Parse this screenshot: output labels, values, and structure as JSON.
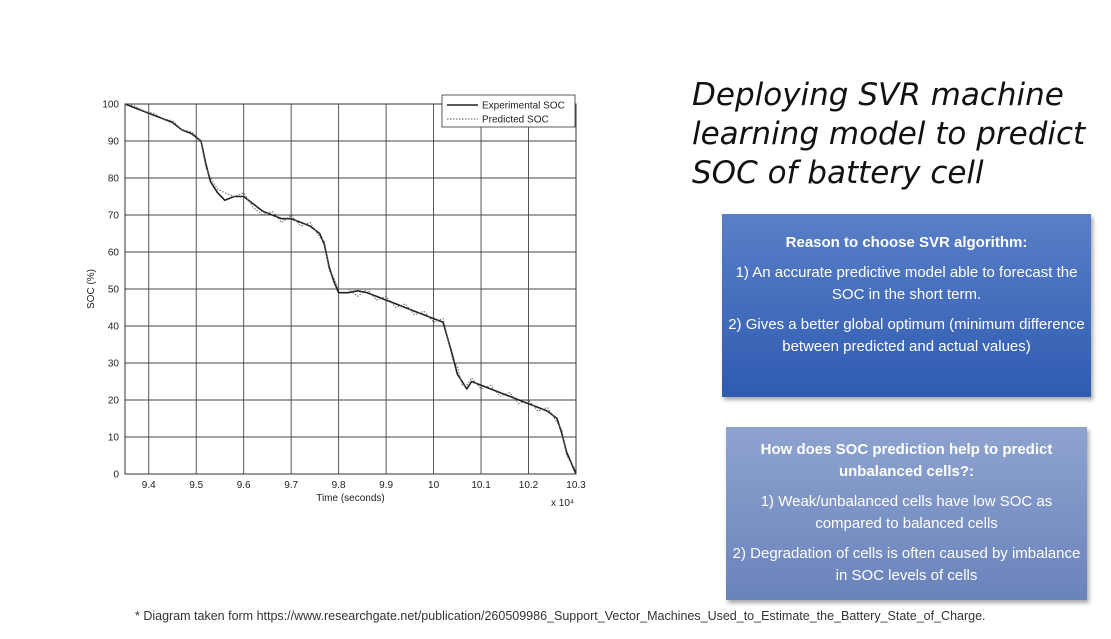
{
  "slide": {
    "title": "Deploying SVR machine learning model to predict SOC of battery cell",
    "box1": {
      "heading": "Reason to choose SVR algorithm:",
      "items": [
        "1)   An accurate predictive model able to forecast the SOC in the short term.",
        "2)  Gives a better global optimum (minimum difference between predicted and actual values)"
      ]
    },
    "box2": {
      "heading": "How does SOC prediction help to predict unbalanced cells?:",
      "items": [
        "1) Weak/unbalanced cells have low SOC as compared to balanced cells",
        "2) Degradation of cells is often caused by imbalance in SOC levels of cells"
      ]
    },
    "footnote": "* Diagram taken form https://www.researchgate.net/publication/260509986_Support_Vector_Machines_Used_to_Estimate_the_Battery_State_of_Charge."
  },
  "chart_data": {
    "type": "line",
    "xlabel": "Time (seconds)",
    "ylabel": "SOC (%)",
    "x_multiplier": "x 10⁴",
    "xlim": [
      9.35,
      10.3
    ],
    "ylim": [
      0,
      100
    ],
    "xticks": [
      "9.4",
      "9.5",
      "9.6",
      "9.7",
      "9.8",
      "9.9",
      "10",
      "10.1",
      "10.2",
      "10.3"
    ],
    "yticks": [
      "0",
      "10",
      "20",
      "30",
      "40",
      "50",
      "60",
      "70",
      "80",
      "90",
      "100"
    ],
    "grid": true,
    "legend_position": "top-right",
    "series": [
      {
        "name": "Experimental SOC",
        "style": "solid",
        "x": [
          9.35,
          9.37,
          9.39,
          9.41,
          9.43,
          9.45,
          9.47,
          9.49,
          9.51,
          9.52,
          9.53,
          9.545,
          9.56,
          9.58,
          9.6,
          9.62,
          9.64,
          9.66,
          9.68,
          9.7,
          9.72,
          9.74,
          9.76,
          9.77,
          9.78,
          9.79,
          9.8,
          9.82,
          9.84,
          9.86,
          9.88,
          9.9,
          9.92,
          9.94,
          9.96,
          9.98,
          10.0,
          10.02,
          10.04,
          10.05,
          10.06,
          10.07,
          10.08,
          10.1,
          10.12,
          10.14,
          10.16,
          10.18,
          10.2,
          10.22,
          10.24,
          10.26,
          10.27,
          10.28,
          10.3
        ],
        "y": [
          100,
          99,
          98,
          97,
          96,
          95,
          93,
          92,
          90,
          84,
          79,
          76,
          74,
          75,
          75,
          73,
          71,
          70,
          69,
          69,
          68,
          67,
          65,
          62,
          56,
          52,
          49,
          49,
          49.5,
          49,
          48,
          47,
          46,
          45,
          44,
          43,
          42,
          41,
          32,
          27,
          25,
          23,
          25,
          24,
          23,
          22,
          21,
          20,
          19,
          18,
          17,
          15,
          11,
          6,
          0
        ]
      },
      {
        "name": "Predicted SOC",
        "style": "dotted",
        "x": [
          9.35,
          9.37,
          9.39,
          9.41,
          9.43,
          9.45,
          9.47,
          9.49,
          9.51,
          9.52,
          9.53,
          9.545,
          9.56,
          9.58,
          9.6,
          9.62,
          9.64,
          9.66,
          9.68,
          9.7,
          9.72,
          9.74,
          9.76,
          9.77,
          9.78,
          9.79,
          9.8,
          9.82,
          9.84,
          9.86,
          9.88,
          9.9,
          9.92,
          9.94,
          9.96,
          9.98,
          10.0,
          10.02,
          10.04,
          10.05,
          10.06,
          10.07,
          10.08,
          10.1,
          10.12,
          10.14,
          10.16,
          10.18,
          10.2,
          10.22,
          10.24,
          10.26,
          10.27,
          10.28,
          10.3
        ],
        "y": [
          100,
          99.5,
          98,
          97.5,
          96,
          95.5,
          93,
          92.5,
          90,
          83,
          80,
          77,
          76,
          75,
          76,
          72,
          70,
          71,
          68,
          70,
          67,
          68,
          64,
          63,
          55,
          53,
          50,
          50,
          48,
          50,
          47,
          48,
          45,
          46,
          43,
          44,
          41,
          42,
          31,
          29,
          24,
          24,
          26,
          23,
          24,
          21,
          22,
          19,
          20,
          17,
          18,
          14,
          12,
          5,
          1
        ]
      }
    ]
  }
}
